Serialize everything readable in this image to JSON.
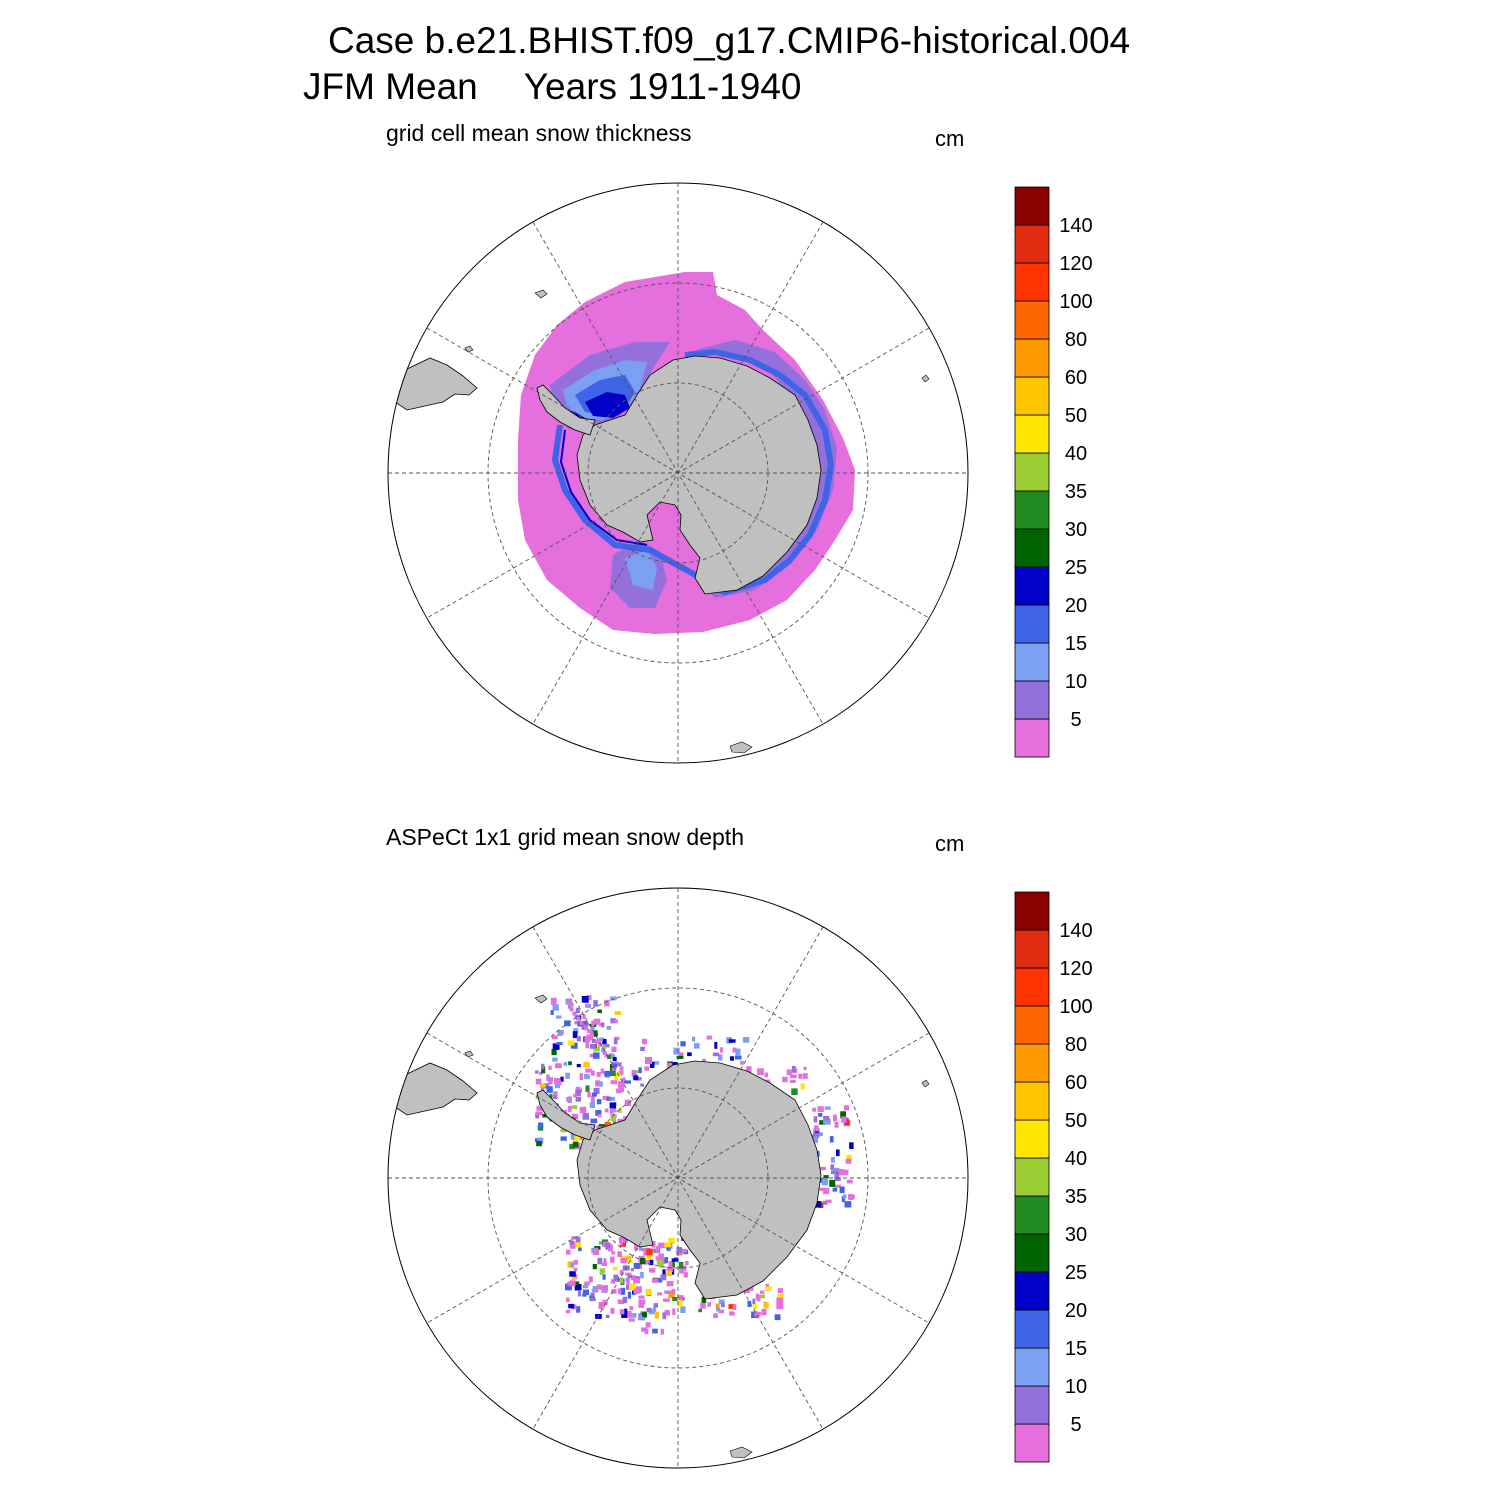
{
  "header": {
    "case_line": "Case b.e21.BHIST.f09_g17.CMIP6-historical.004",
    "season": "JFM Mean",
    "years": "Years 1911-1940"
  },
  "panels": [
    {
      "subtitle": "grid cell mean snow thickness",
      "units": "cm"
    },
    {
      "subtitle": "ASPeCt 1x1 grid mean snow depth",
      "units": "cm"
    }
  ],
  "colorbar": {
    "labels": [
      "5",
      "10",
      "15",
      "20",
      "25",
      "30",
      "35",
      "40",
      "50",
      "60",
      "80",
      "100",
      "120",
      "140"
    ],
    "colors": [
      "#e46fdd",
      "#9470dc",
      "#7b9ff2",
      "#3f64e8",
      "#0000c8",
      "#006400",
      "#228b22",
      "#9acd32",
      "#ffe600",
      "#ffc400",
      "#ff9900",
      "#ff6600",
      "#ff3300",
      "#e02b10",
      "#8b0000"
    ]
  },
  "colors": {
    "land": "#c0c0c0",
    "ocean": "#ffffff",
    "grid": "#555555"
  },
  "map_projection": "south-polar-stereographic"
}
